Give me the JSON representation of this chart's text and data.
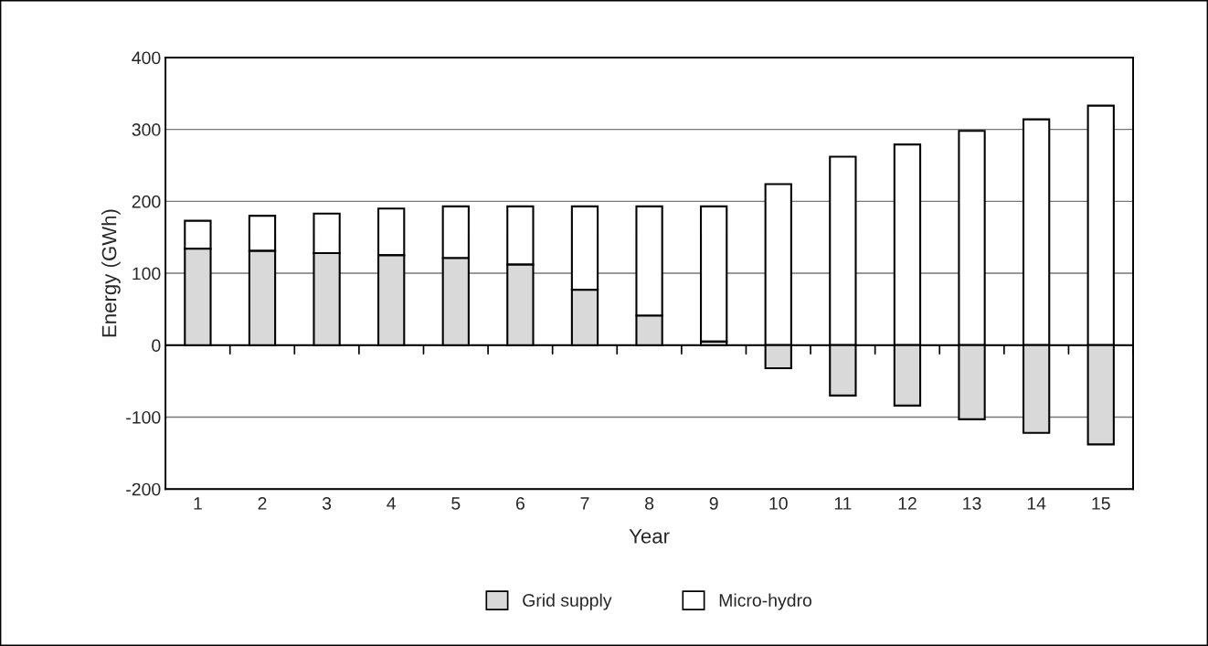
{
  "chart_data": {
    "type": "bar",
    "stacked": true,
    "categories": [
      "1",
      "2",
      "3",
      "4",
      "5",
      "6",
      "7",
      "8",
      "9",
      "10",
      "11",
      "12",
      "13",
      "14",
      "15"
    ],
    "series": [
      {
        "name": "Grid supply",
        "color": "#d9d9d9",
        "values": [
          134,
          131,
          128,
          125,
          121,
          112,
          77,
          41,
          5,
          -32,
          -70,
          -84,
          -103,
          -122,
          -138
        ]
      },
      {
        "name": "Micro-hydro",
        "color": "#ffffff",
        "values": [
          39,
          49,
          55,
          65,
          72,
          81,
          116,
          152,
          188,
          224,
          262,
          279,
          298,
          314,
          333
        ]
      }
    ],
    "xlabel": "Year",
    "ylabel": "Energy (GWh)",
    "ylim": [
      -200,
      400
    ],
    "yticks": [
      -200,
      -100,
      0,
      100,
      200,
      300,
      400
    ],
    "grid": "y",
    "legend": "bottom"
  }
}
